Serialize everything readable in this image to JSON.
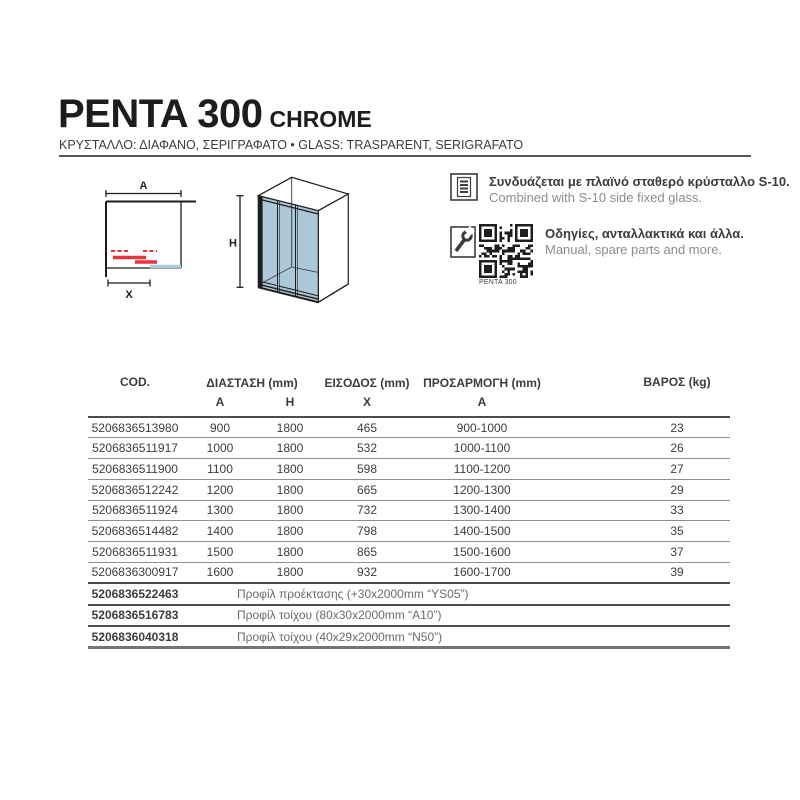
{
  "header": {
    "title": "PENTA 300",
    "title_suffix": "CHROME",
    "subtitle": "ΚΡΥΣΤΑΛΛΟ: ΔΙΑΦΑΝΟ, ΣΕΡΙΓΡΑΦΑΤΟ • GLASS: TRASPARENT, SERIGRAFATO"
  },
  "diagrams": {
    "top_view": {
      "width_label": "A",
      "entry_label": "X"
    },
    "front_view": {
      "height_label": "H"
    }
  },
  "palette": {
    "text_dark": "#3c3c3b",
    "text_gray": "#8c8c8b",
    "accent_red": "#e8323c",
    "glass_blue": "#abc8d8",
    "entry_blue": "#aecbdd",
    "rule_gray": "#575756"
  },
  "info": {
    "combined": {
      "icon": "spec-sheet-icon",
      "text_el": "Συνδυάζεται με πλαϊνό σταθερό κρύσταλλο S-10.",
      "text_en": "Combined with S-10 side fixed glass."
    },
    "manual": {
      "icon": "wrench-icon",
      "qr_label": "PENTA 300",
      "text_el": "Οδηγίες, ανταλλακτικά και άλλα.",
      "text_en": "Manual, spare parts and more."
    }
  },
  "table": {
    "headers": {
      "cod": "COD.",
      "dimension": "ΔΙΑΣΤΑΣΗ (mm)",
      "entry": "ΕΙΣΟΔΟΣ (mm)",
      "adjustment": "ΠΡΟΣΑΡΜΟΓΗ (mm)",
      "weight": "ΒΑΡΟΣ (kg)",
      "sub_a": "A",
      "sub_h": "H",
      "sub_x": "X",
      "sub_a2": "A"
    },
    "rows": [
      {
        "code": "5206836513980",
        "a": "900",
        "h": "1800",
        "x": "465",
        "adj": "900-1000",
        "kg": "23"
      },
      {
        "code": "5206836511917",
        "a": "1000",
        "h": "1800",
        "x": "532",
        "adj": "1000-1100",
        "kg": "26"
      },
      {
        "code": "5206836511900",
        "a": "1100",
        "h": "1800",
        "x": "598",
        "adj": "1100-1200",
        "kg": "27"
      },
      {
        "code": "5206836512242",
        "a": "1200",
        "h": "1800",
        "x": "665",
        "adj": "1200-1300",
        "kg": "29"
      },
      {
        "code": "5206836511924",
        "a": "1300",
        "h": "1800",
        "x": "732",
        "adj": "1300-1400",
        "kg": "33"
      },
      {
        "code": "5206836514482",
        "a": "1400",
        "h": "1800",
        "x": "798",
        "adj": "1400-1500",
        "kg": "35"
      },
      {
        "code": "5206836511931",
        "a": "1500",
        "h": "1800",
        "x": "865",
        "adj": "1500-1600",
        "kg": "37"
      },
      {
        "code": "5206836300917",
        "a": "1600",
        "h": "1800",
        "x": "932",
        "adj": "1600-1700",
        "kg": "39"
      }
    ],
    "accessory_rows": [
      {
        "code": "5206836522463",
        "desc": "Προφίλ προέκτασης (+30x2000mm “YS05”)"
      },
      {
        "code": "5206836516783",
        "desc": "Προφίλ τοίχου (80x30x2000mm “A10”)"
      },
      {
        "code": "5206836040318",
        "desc": "Προφίλ τοίχου (40x29x2000mm “N50”)"
      }
    ]
  }
}
